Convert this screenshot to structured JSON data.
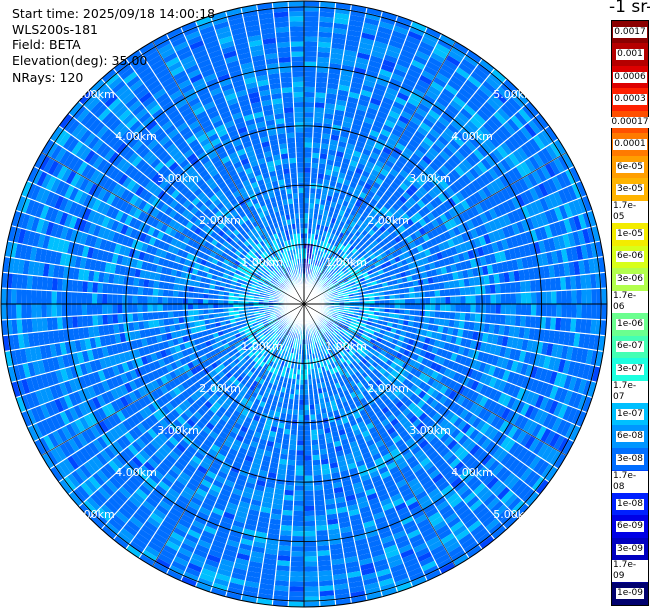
{
  "header": {
    "start_time": "Start time: 2025/09/18 14:00:18",
    "instrument": "WLS200s-181",
    "field": "Field: BETA",
    "elevation": "Elevation(deg): 35.00",
    "nrays": "NRays: 120"
  },
  "units_label": "-1 sr-",
  "chart_data": {
    "type": "heatmap",
    "projection": "polar-ppi",
    "rays": 120,
    "max_range_km": 5.1,
    "range_rings_km": [
      1,
      2,
      3,
      4,
      5
    ],
    "ring_label": {
      "1": "1.00km",
      "2": "2.00km",
      "3": "3.00km",
      "4": "4.00km",
      "5": "5.00km"
    },
    "colorbar": {
      "scale": "log",
      "labels": [
        "0.0017",
        "0.001",
        "0.0006",
        "0.0003",
        "0.00017",
        "0.0001",
        "6e-05",
        "3e-05",
        "1.7e-05",
        "1e-05",
        "6e-06",
        "3e-06",
        "1.7e-06",
        "1e-06",
        "6e-07",
        "3e-07",
        "1.7e-07",
        "1e-07",
        "6e-08",
        "3e-08",
        "1.7e-08",
        "1e-08",
        "6e-09",
        "3e-09",
        "1.7e-09",
        "1e-09"
      ],
      "colors": [
        "#8b0000",
        "#b50000",
        "#dd0000",
        "#ff2000",
        "#ff5000",
        "#ff7a00",
        "#ff9e00",
        "#ffb400",
        "#ffd000",
        "#f3ec00",
        "#d8ff1a",
        "#b2ff4d",
        "#8cff73",
        "#6bff8f",
        "#44ffb4",
        "#1cffe0",
        "#00e8ff",
        "#00c0ff",
        "#0096ff",
        "#006eff",
        "#0046ff",
        "#0020ff",
        "#0000e6",
        "#0000c0",
        "#000096",
        "#00006e"
      ]
    },
    "dominant_values": [
      "3e-08",
      "6e-08",
      "1e-07"
    ]
  }
}
